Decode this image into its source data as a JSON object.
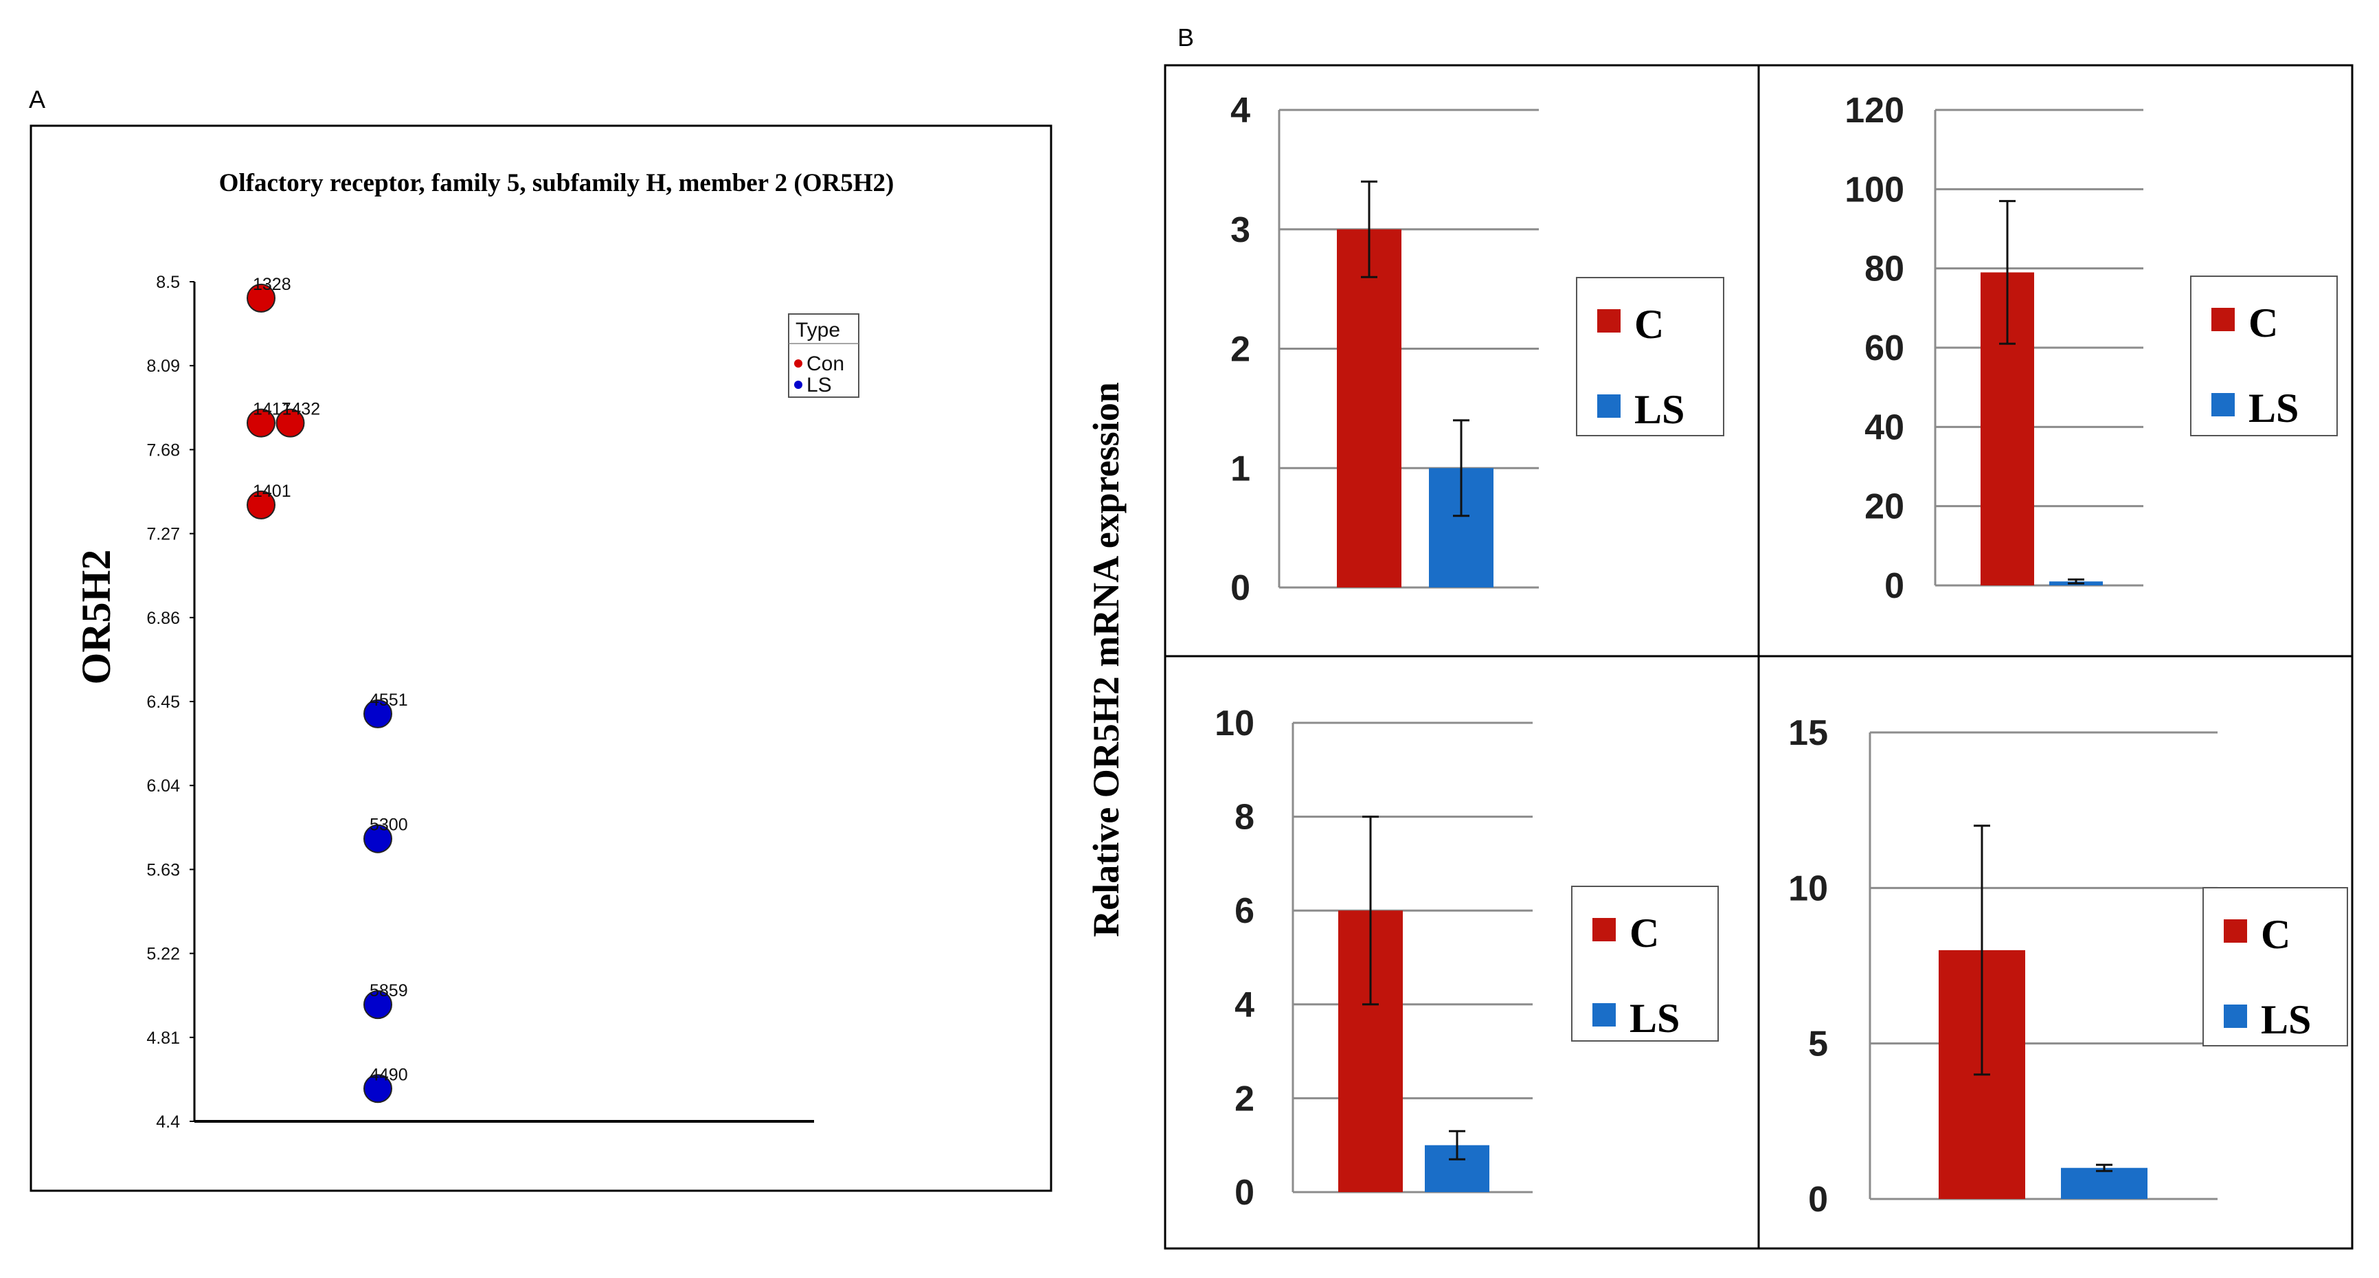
{
  "panel_a_letter": "A",
  "panel_b_letter": "B",
  "chart_data": [
    {
      "id": "A",
      "type": "scatter",
      "title": "Olfactory receptor, family 5, subfamily H, member 2 (OR5H2)",
      "ylabel": "OR5H2",
      "ylim": [
        4.4,
        8.5
      ],
      "yticks": [
        "4.4",
        "4.81",
        "5.22",
        "5.63",
        "6.04",
        "6.45",
        "6.86",
        "7.27",
        "7.68",
        "8.09",
        "8.5"
      ],
      "legend": {
        "title": "Type",
        "placement": "top-right",
        "entries": [
          {
            "name": "Con",
            "color": "#d40000"
          },
          {
            "name": "LS",
            "color": "#0000cc"
          }
        ]
      },
      "series": [
        {
          "name": "Con",
          "color": "#d40000",
          "points": [
            {
              "x": 1,
              "y": 8.42,
              "label": "1328"
            },
            {
              "x": 1,
              "y": 7.81,
              "label": "1417"
            },
            {
              "x": 1.25,
              "y": 7.81,
              "label": "1432"
            },
            {
              "x": 1,
              "y": 7.41,
              "label": "1401"
            }
          ]
        },
        {
          "name": "LS",
          "color": "#0000cc",
          "points": [
            {
              "x": 2,
              "y": 6.39,
              "label": "4551"
            },
            {
              "x": 2,
              "y": 5.78,
              "label": "5300"
            },
            {
              "x": 2,
              "y": 4.97,
              "label": "5859"
            },
            {
              "x": 2,
              "y": 4.56,
              "label": "4490"
            }
          ]
        }
      ]
    },
    {
      "id": "B1",
      "type": "bar",
      "ylabel": "Relative OR5H2 mRNA expression",
      "ylim": [
        0,
        4
      ],
      "yticks": [
        "0",
        "1",
        "2",
        "3",
        "4"
      ],
      "categories": [
        "C",
        "LS"
      ],
      "values": [
        3,
        1
      ],
      "errors": [
        0.4,
        0.4
      ],
      "colors": [
        "#c0140c",
        "#1a6ec8"
      ],
      "legend": [
        "C",
        "LS"
      ]
    },
    {
      "id": "B2",
      "type": "bar",
      "ylim": [
        0,
        120
      ],
      "yticks": [
        "0",
        "20",
        "40",
        "60",
        "80",
        "100",
        "120"
      ],
      "categories": [
        "C",
        "LS"
      ],
      "values": [
        79,
        1
      ],
      "errors": [
        18,
        0.5
      ],
      "colors": [
        "#c0140c",
        "#1a6ec8"
      ],
      "legend": [
        "C",
        "LS"
      ]
    },
    {
      "id": "B3",
      "type": "bar",
      "ylim": [
        0,
        10
      ],
      "yticks": [
        "0",
        "2",
        "4",
        "6",
        "8",
        "10"
      ],
      "categories": [
        "C",
        "LS"
      ],
      "values": [
        6,
        1
      ],
      "errors": [
        2,
        0.3
      ],
      "colors": [
        "#c0140c",
        "#1a6ec8"
      ],
      "legend": [
        "C",
        "LS"
      ]
    },
    {
      "id": "B4",
      "type": "bar",
      "ylim": [
        0,
        15
      ],
      "yticks": [
        "0",
        "5",
        "10",
        "15"
      ],
      "categories": [
        "C",
        "LS"
      ],
      "values": [
        8,
        1
      ],
      "errors": [
        4,
        0.1
      ],
      "colors": [
        "#c0140c",
        "#1a6ec8"
      ],
      "legend": [
        "C",
        "LS"
      ]
    }
  ]
}
